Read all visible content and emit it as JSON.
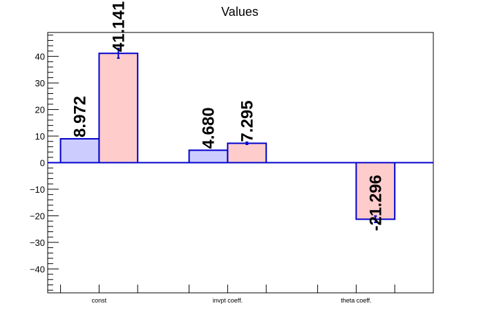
{
  "chart_data": {
    "type": "bar",
    "title": "Values",
    "categories": [
      "const",
      "invpt coeff.",
      "theta coeff."
    ],
    "series": [
      {
        "values": [
          8.972,
          4.68,
          null
        ],
        "errors": [
          0,
          0,
          null
        ],
        "color": "#ccccff",
        "data_labels": [
          "8.972",
          "4.680",
          ""
        ]
      },
      {
        "values": [
          41.141,
          7.295,
          -21.296
        ],
        "errors": [
          1.8,
          0.4,
          1.2
        ],
        "color": "#ffcccc",
        "data_labels": [
          "41.141",
          "7.295",
          "-21.296"
        ]
      }
    ],
    "edge_color": "#0000cc",
    "ylim": [
      -49,
      49
    ],
    "yticks": [
      -40,
      -30,
      -20,
      -10,
      0,
      10,
      20,
      30,
      40
    ],
    "ytick_labels": [
      "−40",
      "−30",
      "−20",
      "−10",
      "0",
      "10",
      "20",
      "30",
      "40"
    ],
    "xlabel": "",
    "ylabel": "",
    "grid": false,
    "legend": "none"
  }
}
